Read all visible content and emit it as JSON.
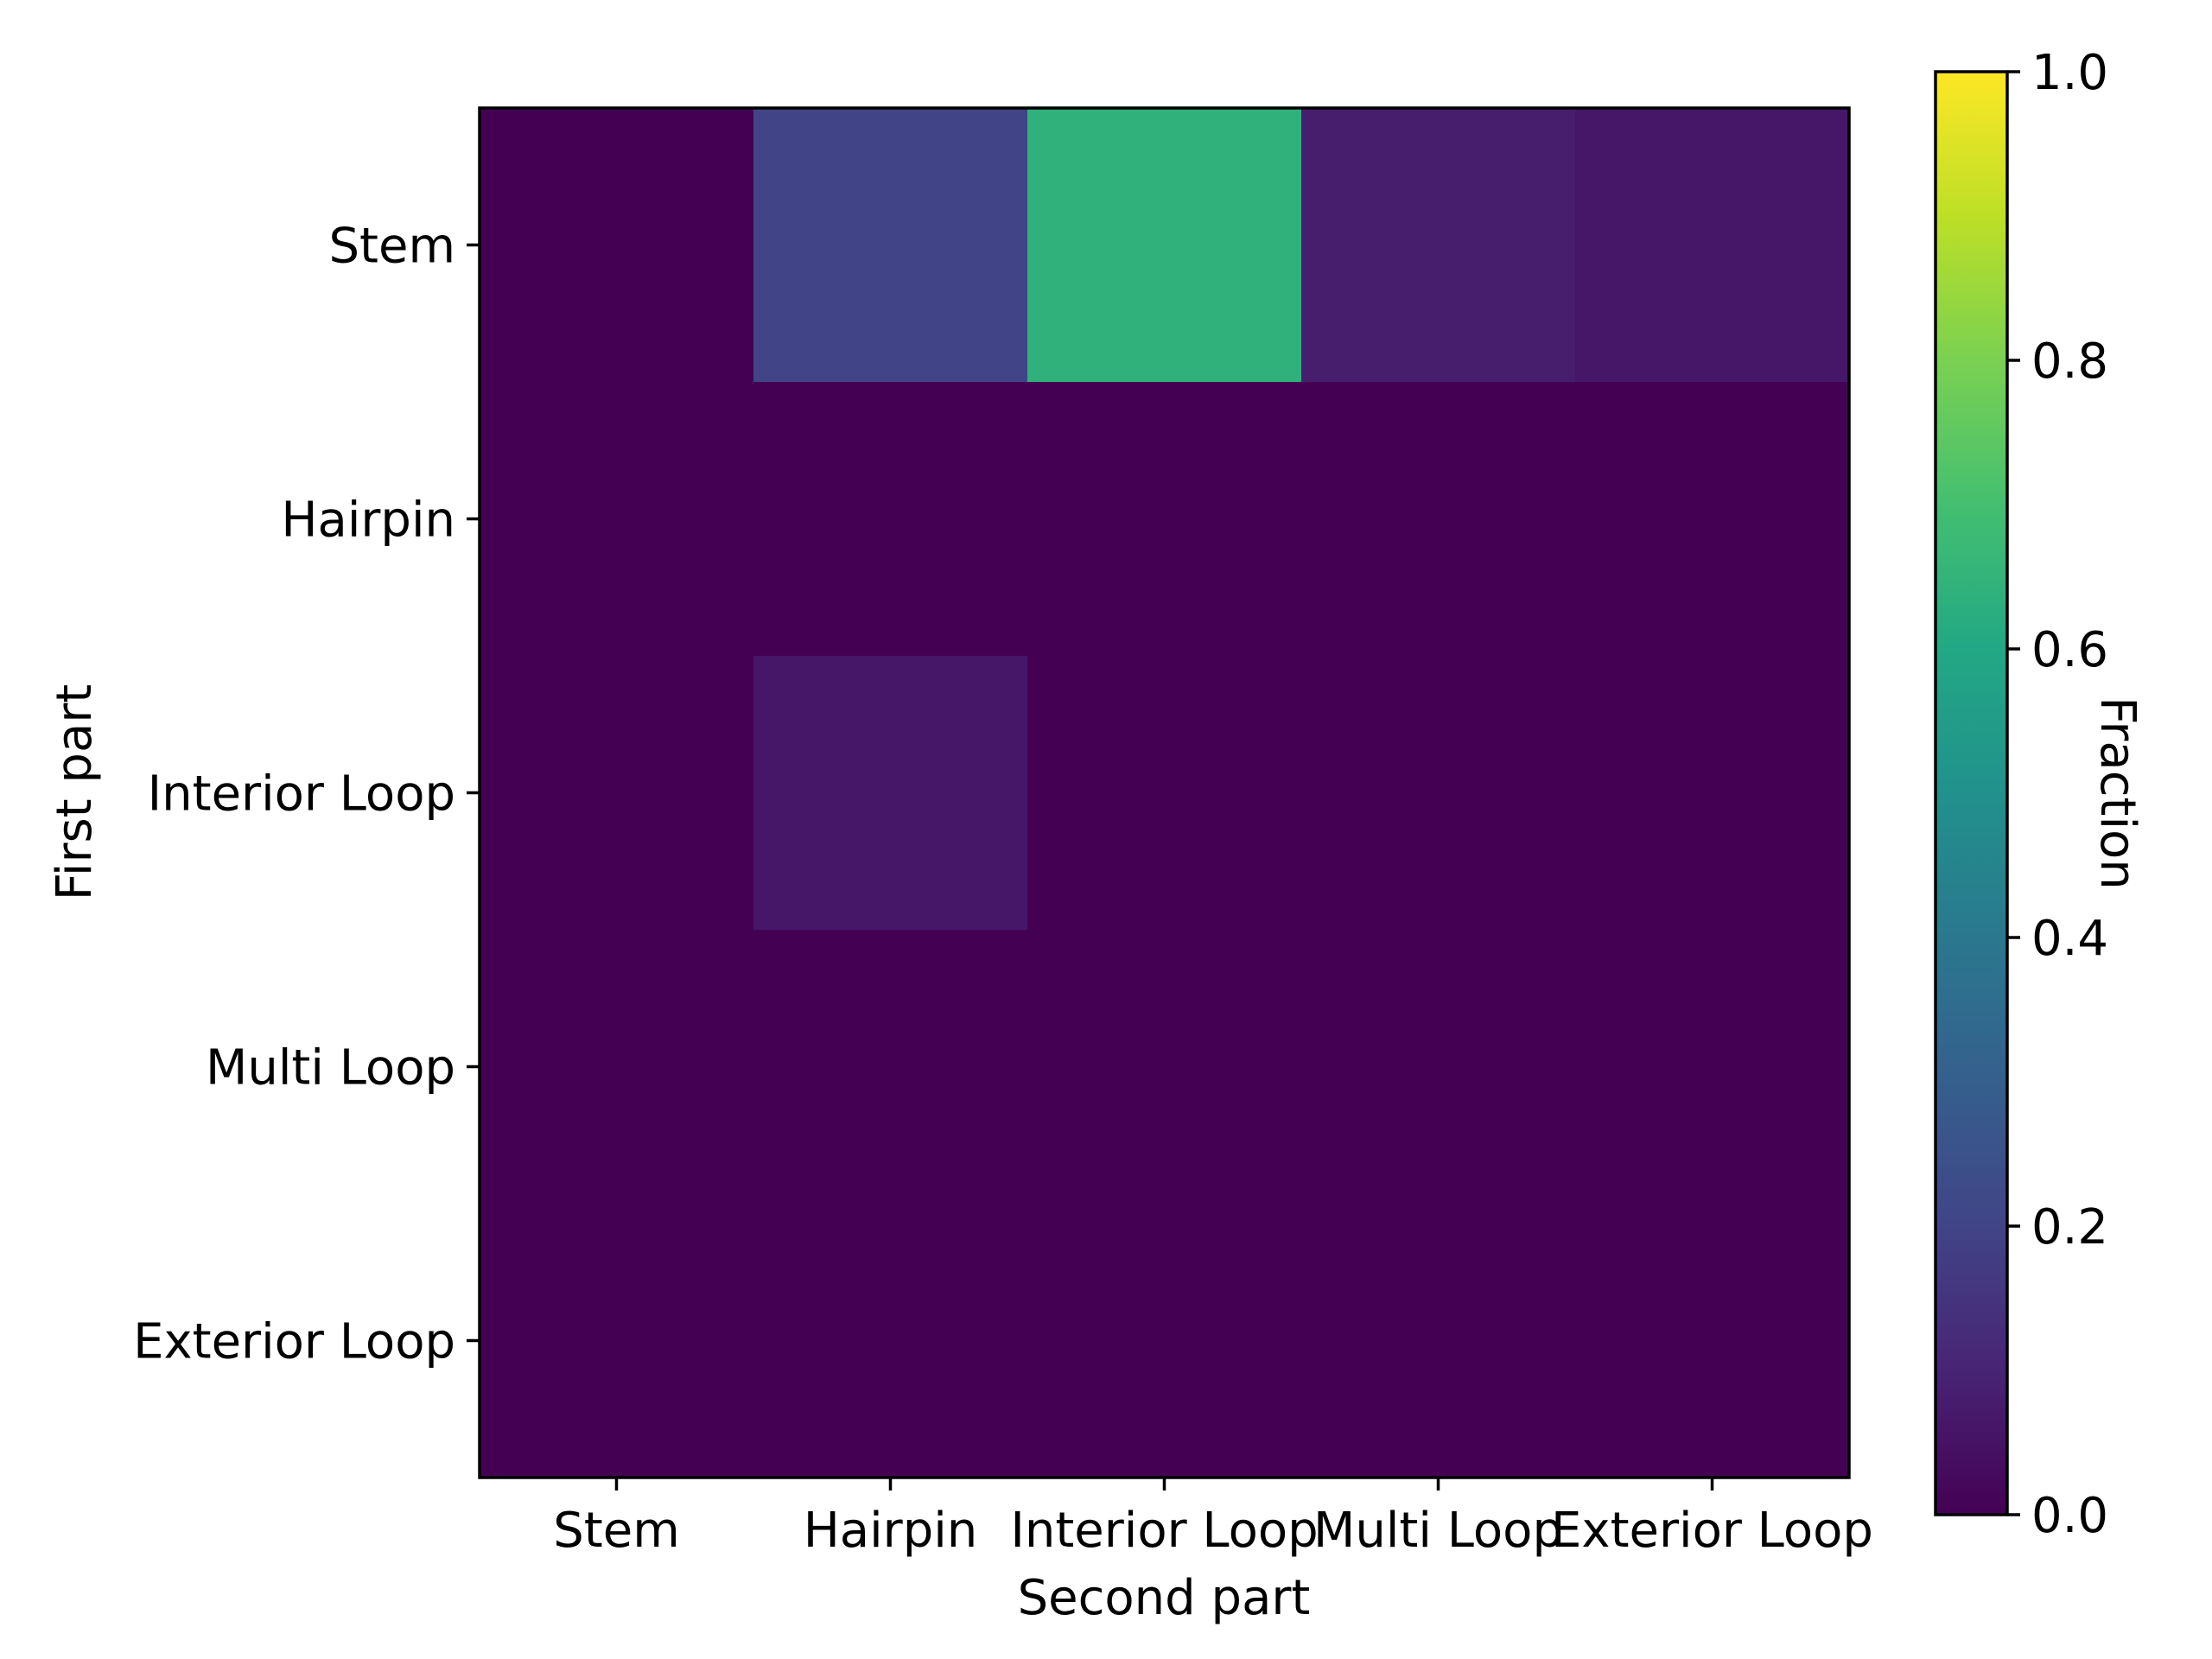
{
  "chart_data": {
    "type": "heatmap",
    "title": "",
    "xlabel": "Second part",
    "ylabel": "First part",
    "x_categories": [
      "Stem",
      "Hairpin",
      "Interior Loop",
      "Multi Loop",
      "Exterior Loop"
    ],
    "y_categories": [
      "Stem",
      "Hairpin",
      "Interior Loop",
      "Multi Loop",
      "Exterior Loop"
    ],
    "values": [
      [
        0.0,
        0.2,
        0.64,
        0.08,
        0.06
      ],
      [
        0.0,
        0.0,
        0.0,
        0.0,
        0.0
      ],
      [
        0.0,
        0.06,
        0.0,
        0.0,
        0.0
      ],
      [
        0.0,
        0.0,
        0.0,
        0.0,
        0.0
      ],
      [
        0.0,
        0.0,
        0.0,
        0.0,
        0.0
      ]
    ],
    "colormap": "viridis",
    "colorbar": {
      "label": "Fraction",
      "range": [
        0.0,
        1.0
      ],
      "ticks": [
        "0.0",
        "0.2",
        "0.4",
        "0.6",
        "0.8",
        "1.0"
      ]
    },
    "grid": false
  }
}
